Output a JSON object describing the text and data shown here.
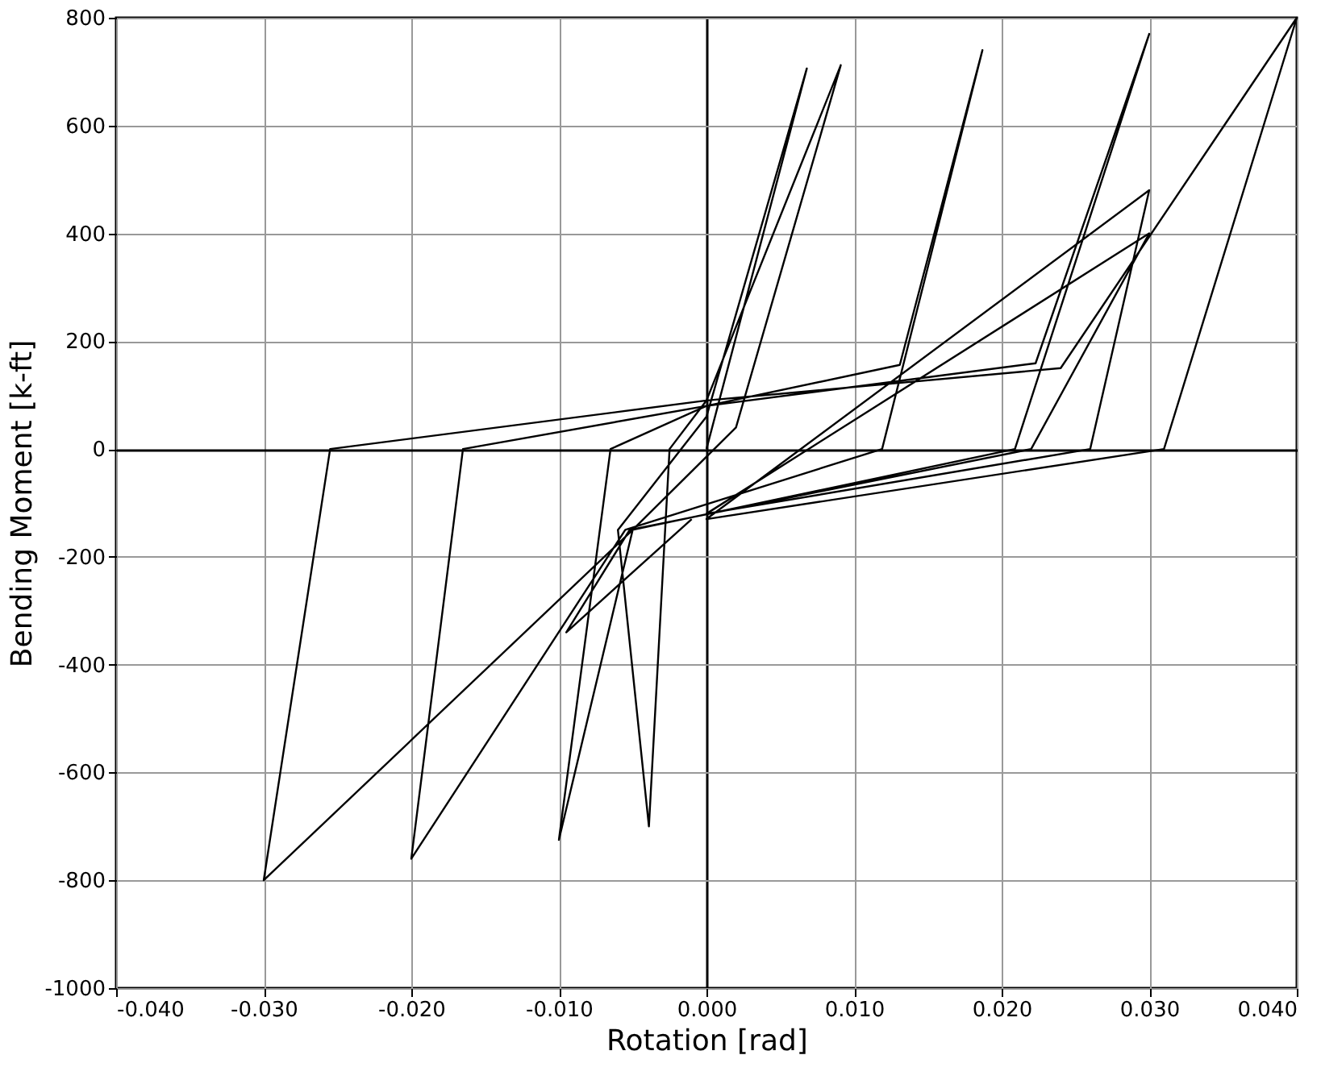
{
  "chart_data": {
    "type": "line",
    "xlabel": "Rotation [rad]",
    "ylabel": "Bending Moment [k-ft]",
    "series": [
      {
        "color": "#000000",
        "x": [
          0,
          0.0068,
          0.0,
          -0.006,
          -0.0039,
          -0.0025,
          0.0,
          0.0091,
          0.002,
          -0.005,
          -0.01,
          -0.0065,
          0.0,
          0.0131,
          0.0187,
          0.0119,
          -0.0055,
          -0.02,
          -0.0165,
          0.0,
          0.0223,
          0.03,
          0.0209,
          -0.005,
          -0.03,
          -0.0255,
          0.0,
          0.024,
          0.04,
          0.031,
          0.0,
          0.03,
          0.026,
          0.0,
          0.03,
          0.022,
          -0.0052,
          -0.0095,
          -0.001
        ],
        "values": [
          0,
          706,
          60,
          -150,
          -700,
          0,
          90,
          712,
          40,
          -150,
          -725,
          0,
          80,
          156,
          740,
          0,
          -150,
          -760,
          0,
          80,
          159,
          770,
          0,
          -150,
          -800,
          0,
          90,
          150,
          800,
          0,
          -130,
          480,
          0,
          -120,
          400,
          0,
          -150,
          -340,
          -130
        ]
      }
    ],
    "xlim": [
      -0.04,
      0.04
    ],
    "xticks": [
      {
        "value": -0.04,
        "label": "-0.040"
      },
      {
        "value": -0.03,
        "label": "-0.030"
      },
      {
        "value": -0.02,
        "label": "-0.020"
      },
      {
        "value": -0.01,
        "label": "-0.010"
      },
      {
        "value": 0,
        "label": "0.000"
      },
      {
        "value": 0.01,
        "label": "0.010"
      },
      {
        "value": 0.02,
        "label": "0.020"
      },
      {
        "value": 0.03,
        "label": "0.030"
      },
      {
        "value": 0.04,
        "label": "0.040"
      }
    ],
    "ylim": [
      -1000,
      800
    ],
    "yticks": [
      -1000,
      -800,
      -600,
      -400,
      -200,
      0,
      200,
      400,
      600,
      800
    ],
    "grid": true,
    "marker": "none",
    "line_style": "solid"
  }
}
